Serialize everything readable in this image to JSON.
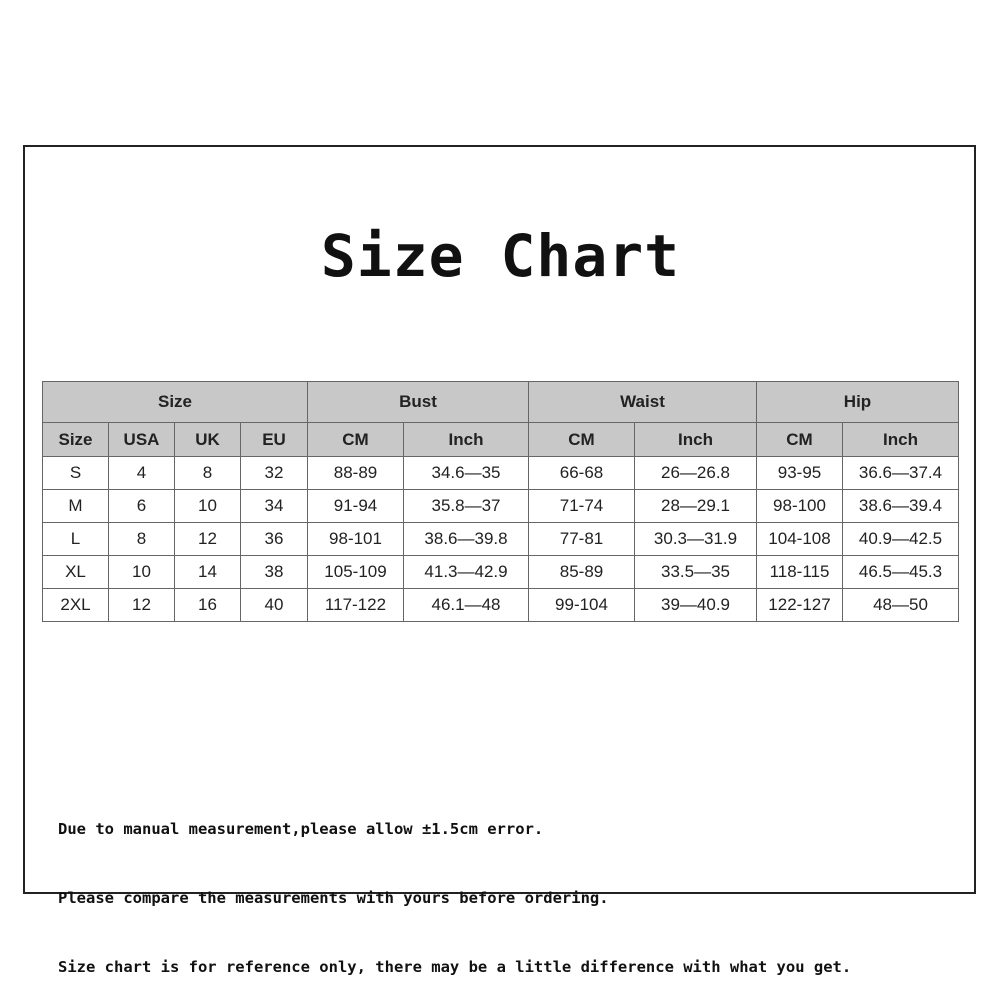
{
  "title": "Size Chart",
  "table": {
    "groups": [
      "Size",
      "Bust",
      "Waist",
      "Hip"
    ],
    "subheaders": [
      "Size",
      "USA",
      "UK",
      "EU",
      "CM",
      "Inch",
      "CM",
      "Inch",
      "CM",
      "Inch"
    ],
    "rows": [
      [
        "S",
        "4",
        "8",
        "32",
        "88-89",
        "34.6—35",
        "66-68",
        "26—26.8",
        "93-95",
        "36.6—37.4"
      ],
      [
        "M",
        "6",
        "10",
        "34",
        "91-94",
        "35.8—37",
        "71-74",
        "28—29.1",
        "98-100",
        "38.6—39.4"
      ],
      [
        "L",
        "8",
        "12",
        "36",
        "98-101",
        "38.6—39.8",
        "77-81",
        "30.3—31.9",
        "104-108",
        "40.9—42.5"
      ],
      [
        "XL",
        "10",
        "14",
        "38",
        "105-109",
        "41.3—42.9",
        "85-89",
        "33.5—35",
        "118-115",
        "46.5—45.3"
      ],
      [
        "2XL",
        "12",
        "16",
        "40",
        "117-122",
        "46.1—48",
        "99-104",
        "39—40.9",
        "122-127",
        "48—50"
      ]
    ]
  },
  "notes": [
    "Due to manual measurement,please allow ±1.5cm error.",
    "Please compare the measurements with yours before ordering.",
    "Size chart is for reference only, there may be a little difference with what you get."
  ],
  "colors": {
    "header_bg": "#c8c8c8",
    "border": "#666666",
    "text": "#222222"
  }
}
